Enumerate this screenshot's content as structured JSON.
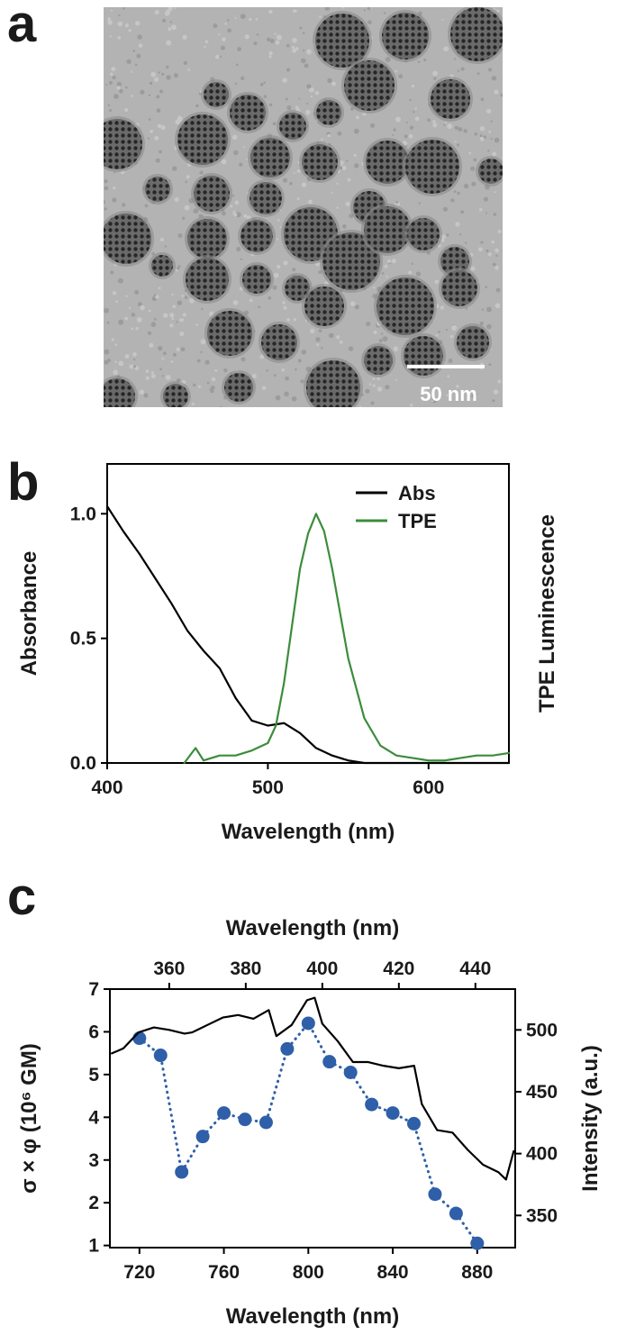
{
  "chart_data": [
    {
      "type": "image",
      "label": "a",
      "scale_bar": "50 nm"
    },
    {
      "type": "line",
      "label": "b",
      "xlabel": "Wavelength (nm)",
      "ylabel": "Absorbance",
      "y2label": "TPE Luminescence",
      "xlim": [
        400,
        650
      ],
      "xticks": [
        400,
        500,
        600
      ],
      "ylim": [
        0,
        1.2
      ],
      "yticks": [
        {
          "value": 0,
          "label": "0.0"
        },
        {
          "value": 0.5,
          "label": "0.5"
        },
        {
          "value": 1,
          "label": "1.0"
        }
      ],
      "y2lim": [
        0,
        1.2
      ],
      "legend": "upper right",
      "series": [
        {
          "name": "Abs",
          "color": "#000000",
          "x": [
            400,
            410,
            420,
            430,
            440,
            450,
            460,
            470,
            480,
            490,
            500,
            510,
            520,
            530,
            540,
            550,
            560,
            570,
            580,
            590,
            600,
            610,
            620,
            630,
            640,
            650
          ],
          "values": [
            1.03,
            0.93,
            0.84,
            0.74,
            0.64,
            0.53,
            0.45,
            0.38,
            0.26,
            0.17,
            0.15,
            0.16,
            0.12,
            0.06,
            0.03,
            0.01,
            0,
            0,
            0,
            0,
            0,
            0,
            0,
            0,
            0,
            0
          ]
        },
        {
          "name": "TPE",
          "color": "#3c8c3c",
          "axis": "y2",
          "x": [
            448,
            455,
            460,
            470,
            480,
            490,
            500,
            505,
            510,
            515,
            520,
            525,
            530,
            535,
            540,
            545,
            550,
            560,
            570,
            580,
            590,
            600,
            610,
            620,
            630,
            640,
            650
          ],
          "values": [
            0,
            0.06,
            0.01,
            0.03,
            0.03,
            0.05,
            0.08,
            0.15,
            0.32,
            0.55,
            0.78,
            0.92,
            1.0,
            0.93,
            0.78,
            0.6,
            0.42,
            0.18,
            0.07,
            0.03,
            0.02,
            0.01,
            0.01,
            0.02,
            0.03,
            0.03,
            0.04
          ]
        }
      ]
    },
    {
      "type": "line",
      "label": "c",
      "xlabel": "Wavelength (nm)",
      "x2label": "Wavelength (nm)",
      "ylabel": "σ × φ (10⁶ GM)",
      "y2label": "Intensity (a.u.)",
      "xlim": [
        706,
        898
      ],
      "xticks": [
        720,
        760,
        800,
        840,
        880
      ],
      "x2lim": [
        344.5,
        450.4
      ],
      "x2ticks": [
        360,
        380,
        400,
        420,
        440
      ],
      "ylim": [
        0.95,
        7
      ],
      "yticks": [
        1,
        2,
        3,
        4,
        5,
        6,
        7
      ],
      "y2lim": [
        324,
        533
      ],
      "y2ticks": [
        350,
        400,
        450,
        500
      ],
      "series": [
        {
          "color": "#2e5fa8",
          "marker": true,
          "linestyle": "dotted",
          "x": [
            720,
            730,
            740,
            750,
            760,
            770,
            780,
            790,
            800,
            810,
            820,
            830,
            840,
            850,
            860,
            870,
            880
          ],
          "values": [
            5.85,
            5.45,
            2.72,
            3.55,
            4.1,
            3.95,
            3.88,
            5.6,
            6.2,
            5.3,
            5.05,
            4.3,
            4.1,
            3.85,
            2.2,
            1.75,
            1.05
          ]
        },
        {
          "color": "#000000",
          "axis": "y2",
          "xaxis": "x2",
          "x": [
            345,
            348,
            352,
            356,
            360,
            364,
            366,
            370,
            374,
            378,
            382,
            386,
            388,
            392,
            396,
            398,
            400,
            404,
            408,
            412,
            416,
            420,
            424,
            426,
            430,
            434,
            438,
            442,
            446,
            448,
            450
          ],
          "values": [
            481,
            485,
            498,
            502,
            500,
            497,
            498,
            504,
            510,
            512,
            509,
            516,
            495,
            504,
            524,
            526,
            505,
            491,
            474,
            474,
            471,
            469,
            471,
            440,
            419,
            417,
            403,
            391,
            385,
            379,
            402
          ]
        }
      ]
    }
  ]
}
